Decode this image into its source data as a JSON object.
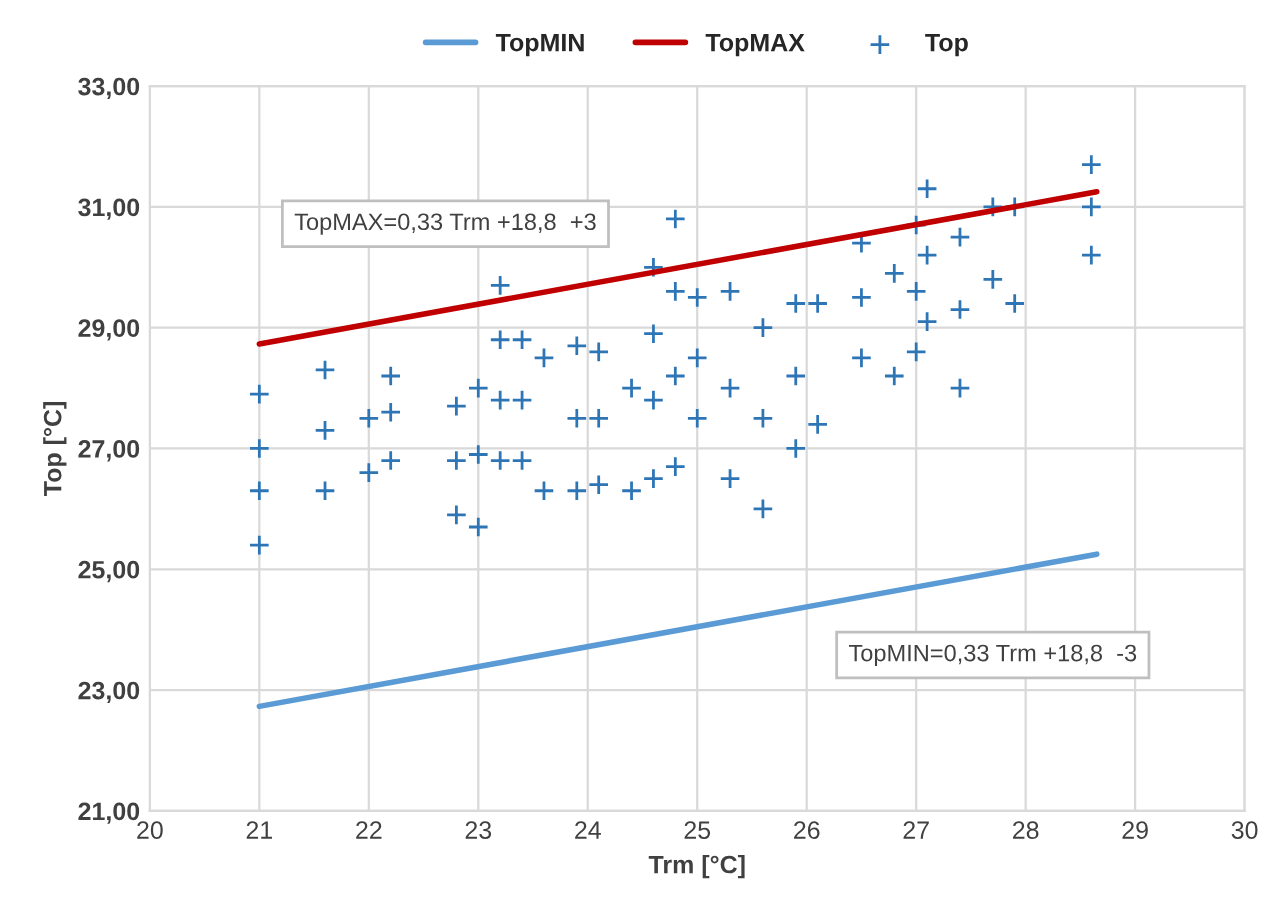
{
  "chart_data": {
    "type": "scatter",
    "xlabel": "Trm [°C]",
    "ylabel": "Top [°C]",
    "xlim": [
      20,
      30
    ],
    "xticks": [
      20,
      21,
      22,
      23,
      24,
      25,
      26,
      27,
      28,
      29,
      30
    ],
    "ylim": [
      21,
      33
    ],
    "yticks": [
      {
        "value": 21,
        "label": "21,00"
      },
      {
        "value": 23,
        "label": "23,00"
      },
      {
        "value": 25,
        "label": "25,00"
      },
      {
        "value": 27,
        "label": "27,00"
      },
      {
        "value": 29,
        "label": "29,00"
      },
      {
        "value": 31,
        "label": "31,00"
      },
      {
        "value": 33,
        "label": "33,00"
      }
    ],
    "grid": true,
    "legend": "top",
    "series": [
      {
        "name": "TopMIN",
        "type": "line",
        "color": "#5b9bd5",
        "x": [
          21,
          28.65
        ],
        "values": [
          22.73,
          25.25
        ]
      },
      {
        "name": "TopMAX",
        "type": "line",
        "color": "#c00000",
        "x": [
          21,
          28.65
        ],
        "values": [
          28.73,
          31.25
        ]
      },
      {
        "name": "Top",
        "color": "#2e75b6",
        "marker": "cross",
        "x": [
          21,
          21,
          21,
          21,
          21.6,
          21.6,
          21.6,
          22.0,
          22.0,
          22.2,
          22.2,
          22.2,
          22.8,
          22.8,
          22.8,
          23.0,
          23.0,
          23.0,
          23.2,
          23.2,
          23.2,
          23.2,
          23.4,
          23.4,
          23.4,
          23.6,
          23.6,
          23.9,
          23.9,
          23.9,
          24.1,
          24.1,
          24.1,
          24.4,
          24.4,
          24.6,
          24.6,
          24.6,
          24.6,
          24.8,
          24.8,
          24.8,
          24.8,
          25.0,
          25.0,
          25.0,
          25.3,
          25.3,
          25.3,
          25.6,
          25.6,
          25.6,
          25.9,
          25.9,
          25.9,
          26.1,
          26.1,
          26.5,
          26.5,
          26.5,
          26.8,
          26.8,
          27.0,
          27.0,
          27.0,
          27.1,
          27.1,
          27.1,
          27.4,
          27.4,
          27.4,
          27.7,
          27.7,
          27.9,
          27.9,
          28.6,
          28.6,
          28.6
        ],
        "values": [
          25.4,
          26.3,
          27.0,
          27.9,
          26.3,
          27.3,
          28.3,
          26.6,
          27.5,
          26.8,
          27.6,
          28.2,
          25.9,
          26.8,
          27.7,
          25.7,
          26.9,
          28.0,
          26.8,
          27.8,
          28.8,
          29.7,
          26.8,
          27.8,
          28.8,
          26.3,
          28.5,
          26.3,
          27.5,
          28.7,
          26.4,
          27.5,
          28.6,
          26.3,
          28.0,
          26.5,
          27.8,
          28.9,
          30.0,
          26.7,
          28.2,
          29.6,
          30.8,
          27.5,
          28.5,
          29.5,
          26.5,
          28.0,
          29.6,
          26.0,
          27.5,
          29.0,
          27.0,
          28.2,
          29.4,
          27.4,
          29.4,
          28.5,
          29.5,
          30.4,
          28.2,
          29.9,
          28.6,
          29.6,
          30.7,
          29.1,
          30.2,
          31.3,
          28.0,
          29.3,
          30.5,
          29.8,
          31.0,
          29.4,
          31.0,
          30.2,
          31.0,
          31.7
        ]
      }
    ],
    "annotations": [
      "TopMAX=0,33 Trm +18,8  +3",
      "TopMIN=0,33 Trm +18,8  -3"
    ]
  }
}
